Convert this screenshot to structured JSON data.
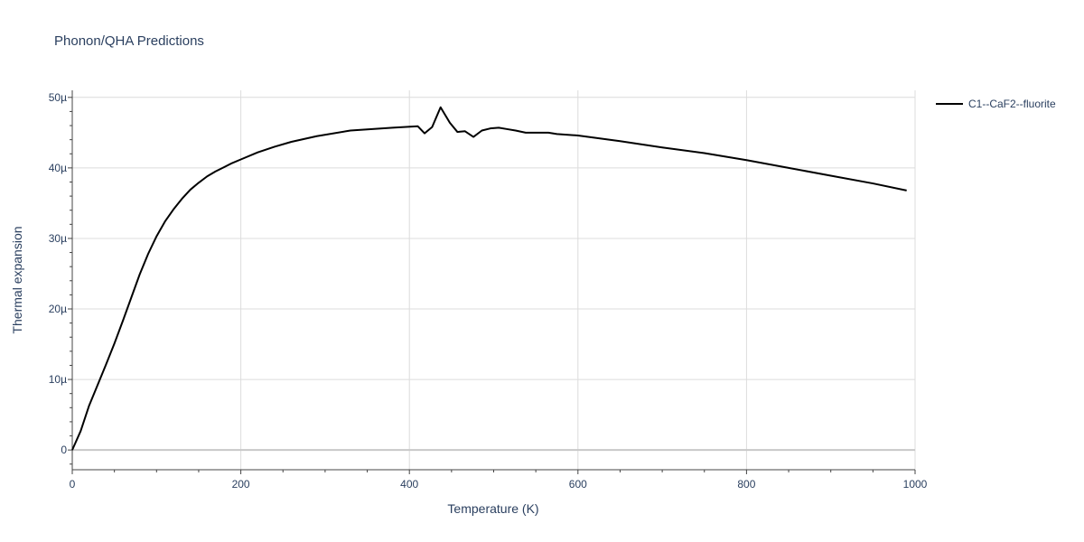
{
  "chart_data": {
    "type": "line",
    "title": "Phonon/QHA Predictions",
    "xlabel": "Temperature (K)",
    "ylabel": "Thermal expansion",
    "xlim": [
      0,
      1000
    ],
    "ylim": [
      -2.8e-06,
      5.1e-05
    ],
    "x_ticks": [
      {
        "value": 0,
        "label": "0"
      },
      {
        "value": 200,
        "label": "200"
      },
      {
        "value": 400,
        "label": "400"
      },
      {
        "value": 600,
        "label": "600"
      },
      {
        "value": 800,
        "label": "800"
      },
      {
        "value": 1000,
        "label": "1000"
      }
    ],
    "y_ticks": [
      {
        "value": 0,
        "label": "0"
      },
      {
        "value": 1e-05,
        "label": "10µ"
      },
      {
        "value": 2e-05,
        "label": "20µ"
      },
      {
        "value": 3e-05,
        "label": "30µ"
      },
      {
        "value": 4e-05,
        "label": "40µ"
      },
      {
        "value": 5e-05,
        "label": "50µ"
      }
    ],
    "grid": true,
    "legend_position": "top-right",
    "series": [
      {
        "name": "C1--CaF2--fluorite",
        "color": "#000000",
        "x": [
          0,
          10,
          20,
          30,
          40,
          50,
          60,
          70,
          80,
          90,
          100,
          110,
          120,
          130,
          140,
          150,
          160,
          170,
          180,
          190,
          200,
          220,
          240,
          260,
          290,
          330,
          380,
          410,
          418,
          427,
          437,
          448,
          457,
          466,
          476,
          486,
          496,
          506,
          516,
          526,
          538,
          552,
          565,
          575,
          600,
          650,
          700,
          750,
          800,
          850,
          900,
          950,
          990
        ],
        "y": [
          0,
          2.7e-06,
          6.3e-06,
          9.2e-06,
          1.21e-05,
          1.51e-05,
          1.83e-05,
          2.16e-05,
          2.49e-05,
          2.78e-05,
          3.03e-05,
          3.24e-05,
          3.41e-05,
          3.56e-05,
          3.69e-05,
          3.79e-05,
          3.88e-05,
          3.95e-05,
          4.01e-05,
          4.07e-05,
          4.12e-05,
          4.22e-05,
          4.3e-05,
          4.37e-05,
          4.45e-05,
          4.53e-05,
          4.57e-05,
          4.59e-05,
          4.49e-05,
          4.58e-05,
          4.86e-05,
          4.64e-05,
          4.51e-05,
          4.52e-05,
          4.44e-05,
          4.53e-05,
          4.56e-05,
          4.57e-05,
          4.55e-05,
          4.53e-05,
          4.5e-05,
          4.5e-05,
          4.5e-05,
          4.48e-05,
          4.46e-05,
          4.38e-05,
          4.29e-05,
          4.21e-05,
          4.11e-05,
          4e-05,
          3.89e-05,
          3.78e-05,
          3.68e-05
        ]
      }
    ]
  }
}
